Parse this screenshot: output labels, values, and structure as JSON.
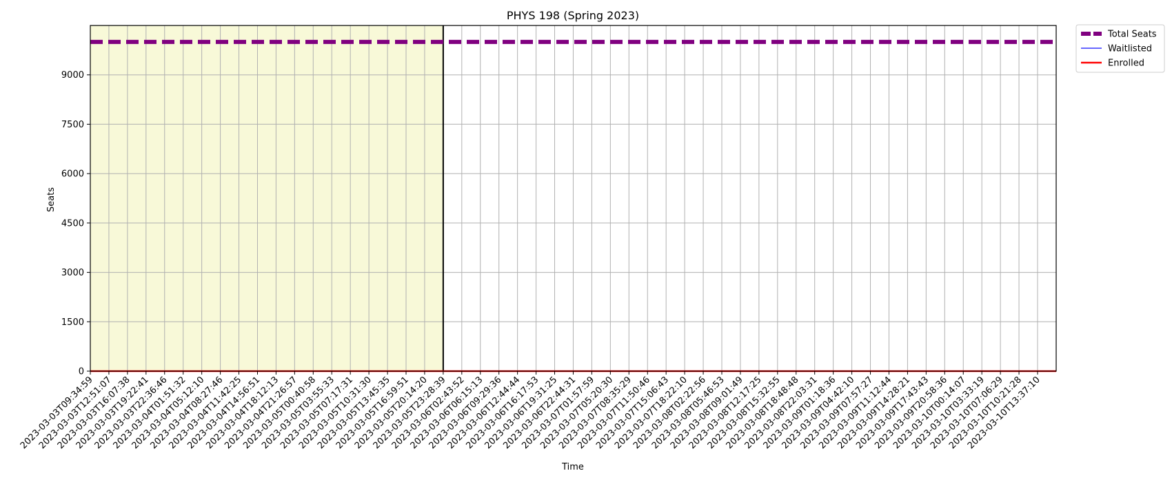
{
  "chart_data": {
    "type": "line",
    "title": "PHYS 198 (Spring 2023)",
    "xlabel": "Time",
    "ylabel": "Seats",
    "ylim": [
      0,
      10500
    ],
    "yticks": [
      0,
      1500,
      3000,
      4500,
      6000,
      7500,
      9000
    ],
    "grid": true,
    "legend_position": "outside-top-right",
    "highlight_region": {
      "from": "2023-03-03T09:34:59",
      "to": "2023-03-05T23:28:39",
      "color": "#f8f9d8"
    },
    "marker_line": {
      "x": "2023-03-05T23:28:39",
      "color": "#000000"
    },
    "x": [
      "2023-03-03T09:34:59",
      "2023-03-03T12:51:07",
      "2023-03-03T16:07:38",
      "2023-03-03T19:22:41",
      "2023-03-03T22:36:46",
      "2023-03-04T01:51:32",
      "2023-03-04T05:12:10",
      "2023-03-04T08:27:46",
      "2023-03-04T11:42:25",
      "2023-03-04T14:56:51",
      "2023-03-04T18:12:13",
      "2023-03-04T21:26:57",
      "2023-03-05T00:40:58",
      "2023-03-05T03:55:33",
      "2023-03-05T07:17:31",
      "2023-03-05T10:31:30",
      "2023-03-05T13:45:35",
      "2023-03-05T16:59:51",
      "2023-03-05T20:14:20",
      "2023-03-05T23:28:39",
      "2023-03-06T02:43:52",
      "2023-03-06T06:15:13",
      "2023-03-06T09:29:36",
      "2023-03-06T12:44:44",
      "2023-03-06T16:17:53",
      "2023-03-06T19:31:25",
      "2023-03-06T22:44:31",
      "2023-03-07T01:57:59",
      "2023-03-07T05:20:30",
      "2023-03-07T08:35:29",
      "2023-03-07T11:50:46",
      "2023-03-07T15:06:43",
      "2023-03-07T18:22:10",
      "2023-03-08T02:22:56",
      "2023-03-08T05:46:53",
      "2023-03-08T09:01:49",
      "2023-03-08T12:17:25",
      "2023-03-08T15:32:55",
      "2023-03-08T18:48:48",
      "2023-03-08T22:03:31",
      "2023-03-09T01:18:36",
      "2023-03-09T04:42:10",
      "2023-03-09T07:57:27",
      "2023-03-09T11:12:44",
      "2023-03-09T14:28:21",
      "2023-03-09T17:43:43",
      "2023-03-09T20:58:36",
      "2023-03-10T00:14:07",
      "2023-03-10T03:33:19",
      "2023-03-10T07:06:29",
      "2023-03-10T10:21:28",
      "2023-03-10T13:37:10"
    ],
    "series": [
      {
        "name": "Total Seats",
        "color": "#800080",
        "style": "dashed",
        "constant_value": 10000
      },
      {
        "name": "Waitlisted",
        "color": "#3333ff",
        "style": "solid",
        "constant_value": 0
      },
      {
        "name": "Enrolled",
        "color": "#ff0000",
        "style": "solid",
        "constant_value": 0
      }
    ]
  }
}
